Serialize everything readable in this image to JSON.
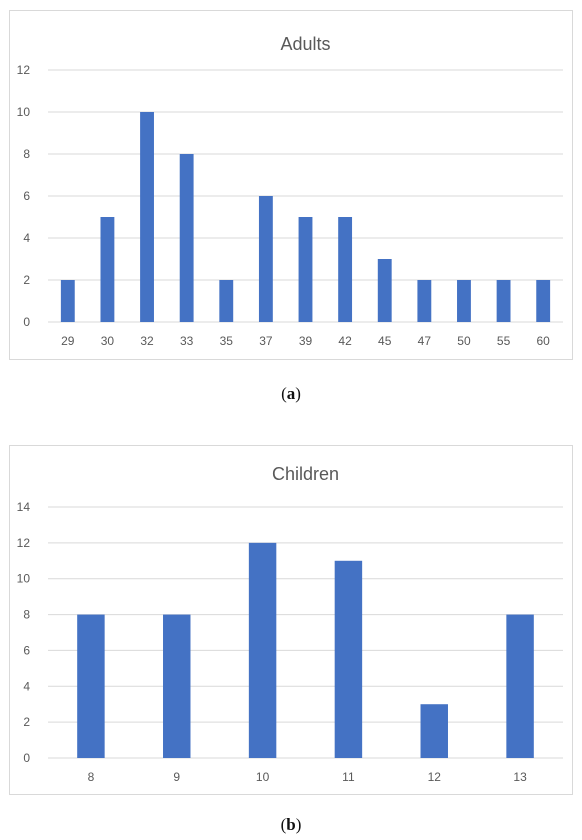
{
  "chart_data": [
    {
      "type": "bar",
      "title": "Adults",
      "categories": [
        "29",
        "30",
        "32",
        "33",
        "35",
        "37",
        "39",
        "42",
        "45",
        "47",
        "50",
        "55",
        "60"
      ],
      "values": [
        2,
        5,
        10,
        8,
        2,
        6,
        5,
        5,
        3,
        2,
        2,
        2,
        2
      ],
      "ylim": [
        0,
        12
      ],
      "yticks": [
        0,
        2,
        4,
        6,
        8,
        10,
        12
      ],
      "grid": true,
      "color": "#4472c4",
      "caption_letter": "a"
    },
    {
      "type": "bar",
      "title": "Children",
      "categories": [
        "8",
        "9",
        "10",
        "11",
        "12",
        "13"
      ],
      "values": [
        8,
        8,
        12,
        11,
        3,
        8
      ],
      "ylim": [
        0,
        14
      ],
      "yticks": [
        0,
        2,
        4,
        6,
        8,
        10,
        12,
        14
      ],
      "grid": true,
      "color": "#4472c4",
      "caption_letter": "b"
    }
  ]
}
